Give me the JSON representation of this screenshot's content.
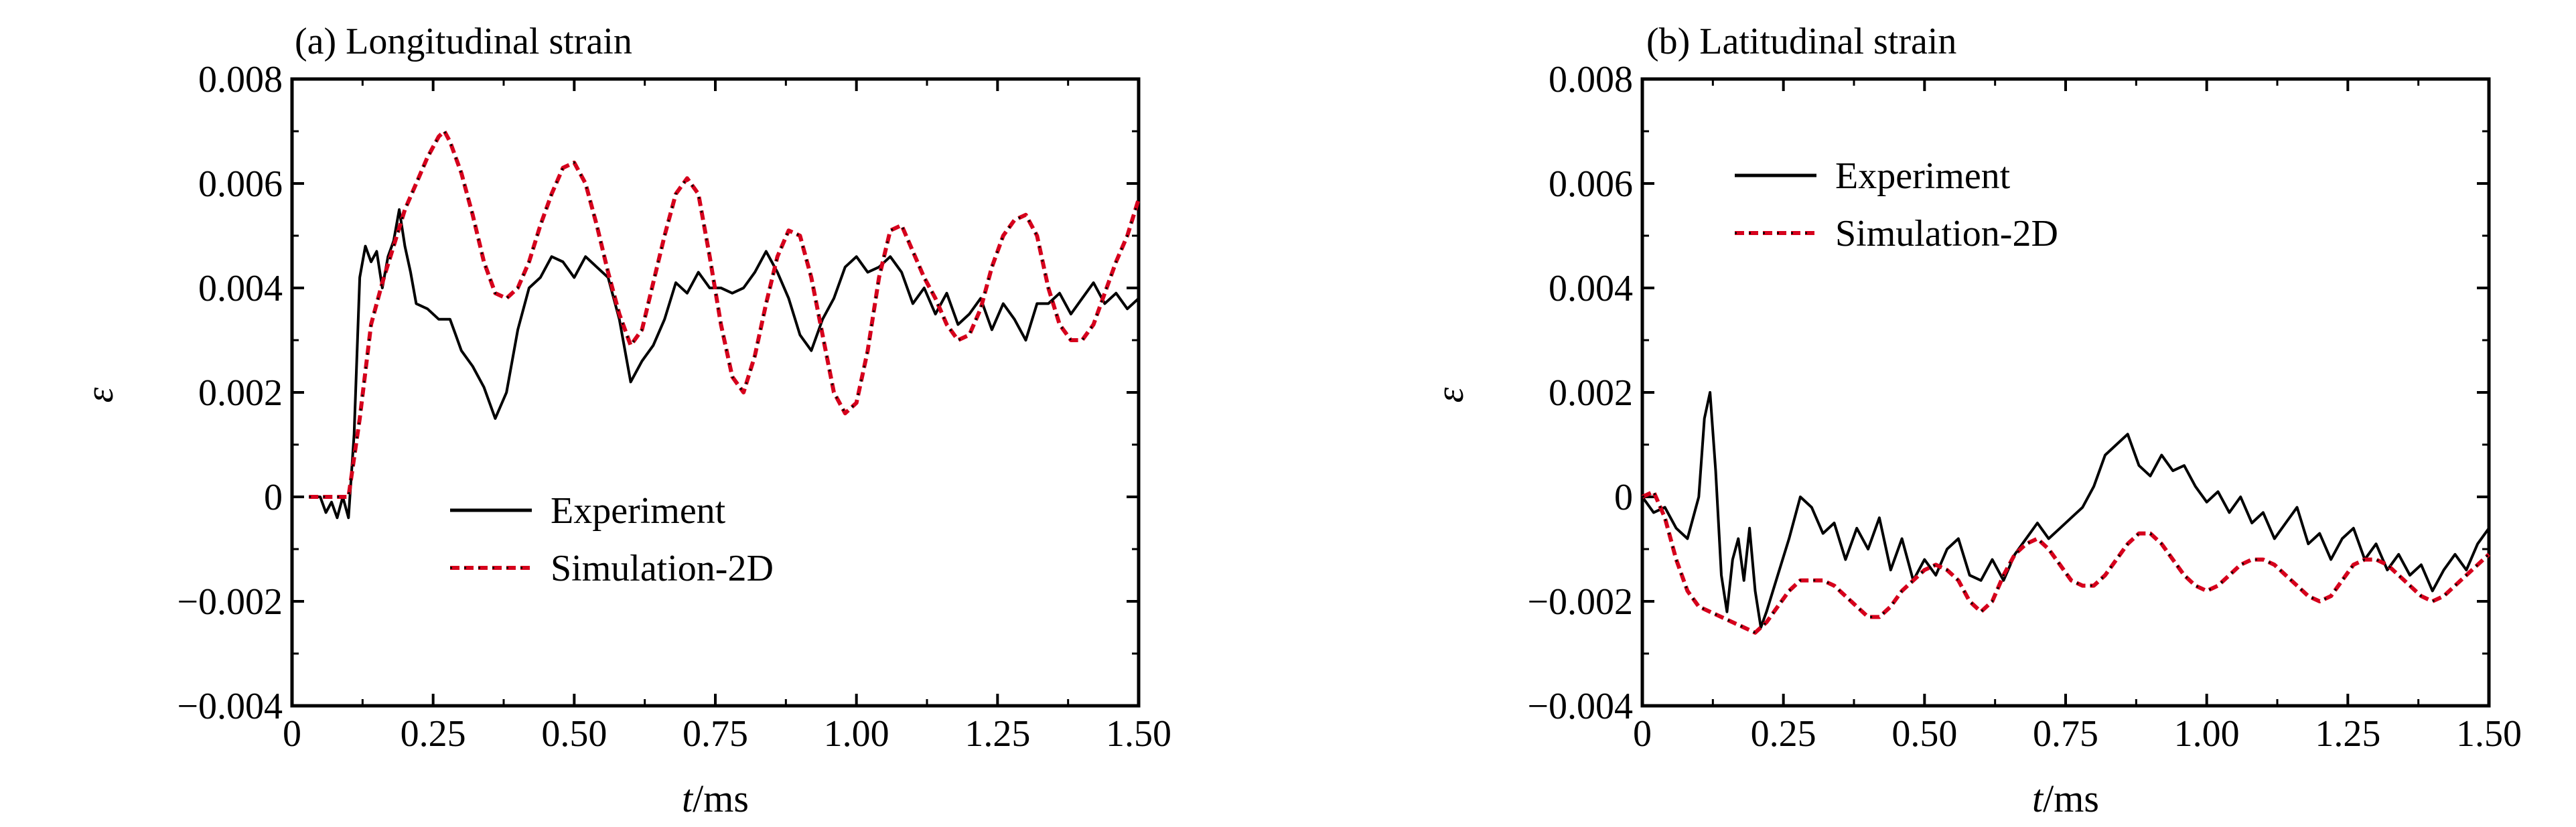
{
  "chart_data": [
    {
      "type": "line",
      "title": "(a) Longitudinal strain",
      "xlabel_italic": "t",
      "xlabel_rest": "/ms",
      "ylabel": "ε",
      "xlim": [
        0,
        1.5
      ],
      "ylim": [
        -0.004,
        0.008
      ],
      "xticks": [
        0,
        0.25,
        0.5,
        0.75,
        1.0,
        1.25,
        1.5
      ],
      "xtick_labels": [
        "0",
        "0.25",
        "0.50",
        "0.75",
        "1.00",
        "1.25",
        "1.50"
      ],
      "yticks": [
        -0.004,
        -0.002,
        0,
        0.002,
        0.004,
        0.006,
        0.008
      ],
      "ytick_labels": [
        "−0.004",
        "−0.002",
        "0",
        "0.002",
        "0.004",
        "0.006",
        "0.008"
      ],
      "grid": false,
      "legend_position": "lower-center",
      "series": [
        {
          "name": "Experiment",
          "color": "#000000",
          "style": "solid",
          "x": [
            0.03,
            0.05,
            0.06,
            0.07,
            0.08,
            0.09,
            0.1,
            0.11,
            0.12,
            0.13,
            0.14,
            0.15,
            0.16,
            0.17,
            0.18,
            0.19,
            0.2,
            0.21,
            0.22,
            0.24,
            0.26,
            0.28,
            0.29,
            0.3,
            0.32,
            0.34,
            0.36,
            0.38,
            0.4,
            0.42,
            0.44,
            0.46,
            0.48,
            0.5,
            0.52,
            0.54,
            0.56,
            0.58,
            0.6,
            0.62,
            0.64,
            0.66,
            0.68,
            0.7,
            0.72,
            0.74,
            0.76,
            0.78,
            0.8,
            0.82,
            0.84,
            0.86,
            0.88,
            0.9,
            0.92,
            0.94,
            0.96,
            0.98,
            1.0,
            1.02,
            1.04,
            1.06,
            1.08,
            1.1,
            1.12,
            1.14,
            1.16,
            1.18,
            1.2,
            1.22,
            1.24,
            1.26,
            1.28,
            1.3,
            1.32,
            1.34,
            1.36,
            1.38,
            1.4,
            1.42,
            1.44,
            1.46,
            1.48,
            1.5
          ],
          "y": [
            0.0,
            0.0,
            -0.0003,
            -0.0001,
            -0.0004,
            0.0,
            -0.0004,
            0.0012,
            0.0042,
            0.0048,
            0.0045,
            0.0047,
            0.004,
            0.0046,
            0.0049,
            0.0055,
            0.0048,
            0.0043,
            0.0037,
            0.0036,
            0.0034,
            0.0034,
            0.0031,
            0.0028,
            0.0025,
            0.0021,
            0.0015,
            0.002,
            0.0032,
            0.004,
            0.0042,
            0.0046,
            0.0045,
            0.0042,
            0.0046,
            0.0044,
            0.0042,
            0.0034,
            0.0022,
            0.0026,
            0.0029,
            0.0034,
            0.0041,
            0.0039,
            0.0043,
            0.004,
            0.004,
            0.0039,
            0.004,
            0.0043,
            0.0047,
            0.0043,
            0.0038,
            0.0031,
            0.0028,
            0.0034,
            0.0038,
            0.0044,
            0.0046,
            0.0043,
            0.0044,
            0.0046,
            0.0043,
            0.0037,
            0.004,
            0.0035,
            0.0039,
            0.0033,
            0.0035,
            0.0038,
            0.0032,
            0.0037,
            0.0034,
            0.003,
            0.0037,
            0.0037,
            0.0039,
            0.0035,
            0.0038,
            0.0041,
            0.0037,
            0.0039,
            0.0036,
            0.0038
          ]
        },
        {
          "name": "Simulation-2D",
          "color": "#d6001c",
          "style": "dashed",
          "x": [
            0.03,
            0.05,
            0.08,
            0.1,
            0.12,
            0.14,
            0.16,
            0.18,
            0.2,
            0.22,
            0.24,
            0.26,
            0.27,
            0.28,
            0.3,
            0.32,
            0.34,
            0.36,
            0.38,
            0.4,
            0.42,
            0.44,
            0.46,
            0.48,
            0.5,
            0.52,
            0.54,
            0.56,
            0.58,
            0.6,
            0.62,
            0.64,
            0.66,
            0.68,
            0.7,
            0.72,
            0.74,
            0.76,
            0.78,
            0.8,
            0.82,
            0.84,
            0.86,
            0.88,
            0.9,
            0.92,
            0.94,
            0.96,
            0.98,
            1.0,
            1.02,
            1.04,
            1.06,
            1.08,
            1.1,
            1.12,
            1.14,
            1.16,
            1.18,
            1.2,
            1.22,
            1.24,
            1.26,
            1.28,
            1.3,
            1.32,
            1.34,
            1.36,
            1.38,
            1.4,
            1.42,
            1.44,
            1.46,
            1.48,
            1.5
          ],
          "y": [
            0.0,
            0.0,
            0.0,
            0.0,
            0.0015,
            0.0033,
            0.0041,
            0.0048,
            0.0055,
            0.006,
            0.0065,
            0.0069,
            0.007,
            0.0068,
            0.0062,
            0.0054,
            0.0045,
            0.0039,
            0.0038,
            0.004,
            0.0045,
            0.0052,
            0.0058,
            0.0063,
            0.0064,
            0.006,
            0.0052,
            0.0043,
            0.0035,
            0.0029,
            0.0032,
            0.0041,
            0.005,
            0.0058,
            0.0061,
            0.0058,
            0.0046,
            0.0033,
            0.0023,
            0.002,
            0.0027,
            0.0037,
            0.0046,
            0.0051,
            0.005,
            0.0042,
            0.0031,
            0.002,
            0.0016,
            0.0018,
            0.0028,
            0.0042,
            0.0051,
            0.0052,
            0.0047,
            0.0042,
            0.0038,
            0.0033,
            0.003,
            0.0031,
            0.0036,
            0.0044,
            0.005,
            0.0053,
            0.0054,
            0.005,
            0.004,
            0.0033,
            0.003,
            0.003,
            0.0033,
            0.0039,
            0.0045,
            0.005,
            0.0057
          ]
        }
      ]
    },
    {
      "type": "line",
      "title": "(b) Latitudinal strain",
      "xlabel_italic": "t",
      "xlabel_rest": "/ms",
      "ylabel": "ε",
      "xlim": [
        0,
        1.5
      ],
      "ylim": [
        -0.004,
        0.008
      ],
      "xticks": [
        0,
        0.25,
        0.5,
        0.75,
        1.0,
        1.25,
        1.5
      ],
      "xtick_labels": [
        "0",
        "0.25",
        "0.50",
        "0.75",
        "1.00",
        "1.25",
        "1.50"
      ],
      "yticks": [
        -0.004,
        -0.002,
        0,
        0.002,
        0.004,
        0.006,
        0.008
      ],
      "ytick_labels": [
        "−0.004",
        "−0.002",
        "0",
        "0.002",
        "0.004",
        "0.006",
        "0.008"
      ],
      "grid": false,
      "legend_position": "upper-left",
      "series": [
        {
          "name": "Experiment",
          "color": "#000000",
          "style": "solid",
          "x": [
            0.0,
            0.02,
            0.04,
            0.06,
            0.08,
            0.1,
            0.11,
            0.12,
            0.13,
            0.14,
            0.15,
            0.16,
            0.17,
            0.18,
            0.19,
            0.2,
            0.21,
            0.22,
            0.24,
            0.26,
            0.28,
            0.3,
            0.32,
            0.34,
            0.36,
            0.38,
            0.4,
            0.42,
            0.44,
            0.46,
            0.48,
            0.5,
            0.52,
            0.54,
            0.56,
            0.58,
            0.6,
            0.62,
            0.64,
            0.66,
            0.68,
            0.7,
            0.72,
            0.74,
            0.76,
            0.78,
            0.8,
            0.82,
            0.84,
            0.86,
            0.88,
            0.9,
            0.92,
            0.94,
            0.96,
            0.98,
            1.0,
            1.02,
            1.04,
            1.06,
            1.08,
            1.1,
            1.12,
            1.14,
            1.16,
            1.18,
            1.2,
            1.22,
            1.24,
            1.26,
            1.28,
            1.3,
            1.32,
            1.34,
            1.36,
            1.38,
            1.4,
            1.42,
            1.44,
            1.46,
            1.48,
            1.5
          ],
          "y": [
            0.0,
            -0.0003,
            -0.0002,
            -0.0006,
            -0.0008,
            0.0,
            0.0015,
            0.002,
            0.0005,
            -0.0015,
            -0.0022,
            -0.0012,
            -0.0008,
            -0.0016,
            -0.0006,
            -0.0018,
            -0.0025,
            -0.0022,
            -0.0015,
            -0.0008,
            0.0,
            -0.0002,
            -0.0007,
            -0.0005,
            -0.0012,
            -0.0006,
            -0.001,
            -0.0004,
            -0.0014,
            -0.0008,
            -0.0016,
            -0.0012,
            -0.0015,
            -0.001,
            -0.0008,
            -0.0015,
            -0.0016,
            -0.0012,
            -0.0016,
            -0.0011,
            -0.0008,
            -0.0005,
            -0.0008,
            -0.0006,
            -0.0004,
            -0.0002,
            0.0002,
            0.0008,
            0.001,
            0.0012,
            0.0006,
            0.0004,
            0.0008,
            0.0005,
            0.0006,
            0.0002,
            -0.0001,
            0.0001,
            -0.0003,
            0.0,
            -0.0005,
            -0.0003,
            -0.0008,
            -0.0005,
            -0.0002,
            -0.0009,
            -0.0007,
            -0.0012,
            -0.0008,
            -0.0006,
            -0.0012,
            -0.0009,
            -0.0014,
            -0.0011,
            -0.0015,
            -0.0013,
            -0.0018,
            -0.0014,
            -0.0011,
            -0.0014,
            -0.0009,
            -0.0006
          ]
        },
        {
          "name": "Simulation-2D",
          "color": "#d6001c",
          "style": "dashed",
          "x": [
            0.0,
            0.02,
            0.04,
            0.06,
            0.08,
            0.1,
            0.12,
            0.14,
            0.16,
            0.18,
            0.2,
            0.22,
            0.24,
            0.26,
            0.28,
            0.3,
            0.32,
            0.34,
            0.36,
            0.38,
            0.4,
            0.42,
            0.44,
            0.46,
            0.48,
            0.5,
            0.52,
            0.54,
            0.56,
            0.58,
            0.6,
            0.62,
            0.64,
            0.66,
            0.68,
            0.7,
            0.72,
            0.74,
            0.76,
            0.78,
            0.8,
            0.82,
            0.84,
            0.86,
            0.88,
            0.9,
            0.92,
            0.94,
            0.96,
            0.98,
            1.0,
            1.02,
            1.04,
            1.06,
            1.08,
            1.1,
            1.12,
            1.14,
            1.16,
            1.18,
            1.2,
            1.22,
            1.24,
            1.26,
            1.28,
            1.3,
            1.32,
            1.34,
            1.36,
            1.38,
            1.4,
            1.42,
            1.44,
            1.46,
            1.48,
            1.5
          ],
          "y": [
            0.0,
            0.0001,
            -0.0004,
            -0.0012,
            -0.0018,
            -0.0021,
            -0.0022,
            -0.0023,
            -0.0024,
            -0.0025,
            -0.0026,
            -0.0024,
            -0.0021,
            -0.0018,
            -0.0016,
            -0.0016,
            -0.0016,
            -0.0017,
            -0.0019,
            -0.0021,
            -0.0023,
            -0.0023,
            -0.0021,
            -0.0018,
            -0.0016,
            -0.0014,
            -0.0013,
            -0.0014,
            -0.0016,
            -0.002,
            -0.0022,
            -0.002,
            -0.0015,
            -0.0011,
            -0.0009,
            -0.0008,
            -0.001,
            -0.0013,
            -0.0016,
            -0.0017,
            -0.0017,
            -0.0015,
            -0.0012,
            -0.0009,
            -0.0007,
            -0.0007,
            -0.0009,
            -0.0012,
            -0.0015,
            -0.0017,
            -0.0018,
            -0.0017,
            -0.0015,
            -0.0013,
            -0.0012,
            -0.0012,
            -0.0013,
            -0.0015,
            -0.0017,
            -0.0019,
            -0.002,
            -0.0019,
            -0.0016,
            -0.0013,
            -0.0012,
            -0.0012,
            -0.0013,
            -0.0015,
            -0.0017,
            -0.0019,
            -0.002,
            -0.0019,
            -0.0017,
            -0.0015,
            -0.0013,
            -0.0011
          ]
        }
      ]
    }
  ]
}
